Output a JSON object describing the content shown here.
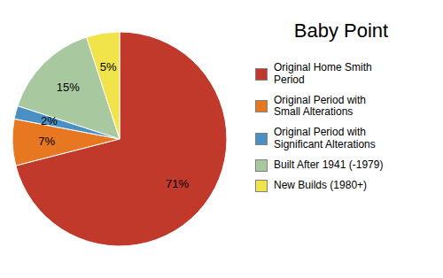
{
  "chart_data": {
    "type": "pie",
    "title": "Baby Point",
    "categories": [
      "Original Home Smith\nPeriod",
      "Original Period with\nSmall Alterations",
      "Original Period with\nSignificant Alterations",
      "Built After 1941 (-1979)",
      "New Builds (1980+)"
    ],
    "values": [
      71,
      7,
      2,
      15,
      5
    ],
    "value_labels": [
      "71%",
      "7%",
      "2%",
      "15%",
      "5%"
    ],
    "colors": [
      "#c0392b",
      "#e87722",
      "#4a90c4",
      "#a8c8a0",
      "#f0e44a"
    ],
    "data_labels": true,
    "legend": "right"
  }
}
